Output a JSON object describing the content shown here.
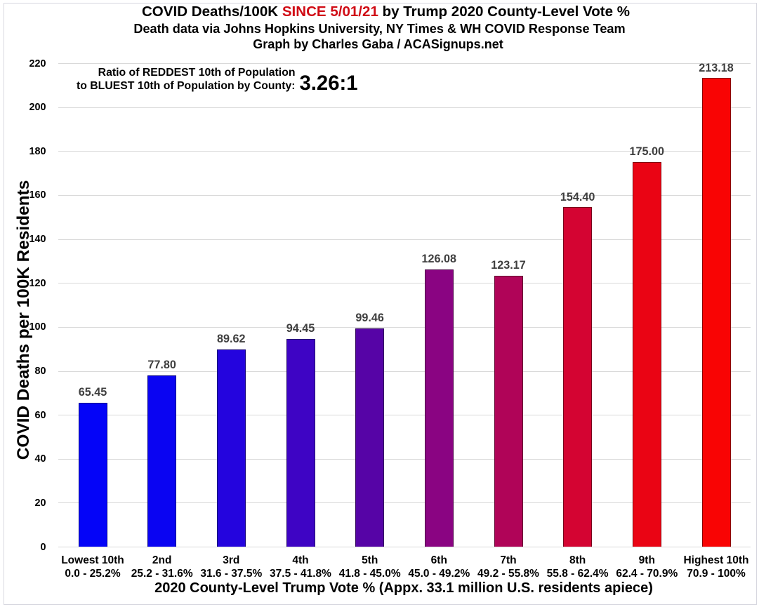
{
  "title": {
    "line1_prefix": "COVID Deaths/100K ",
    "line1_highlight": "SINCE 5/01/21",
    "line1_suffix": " by Trump 2020 County-Level Vote %",
    "line2": "Death data via Johns Hopkins University, NY Times & WH COVID Response Team",
    "line3": "Graph by Charles Gaba / ACASignups.net",
    "highlight_color": "#d00b15"
  },
  "annotation": {
    "line1": "Ratio of REDDEST 10th of Population",
    "line2": "to BLUEST 10th of Population by County:",
    "value": "3.26:1"
  },
  "chart_data": {
    "type": "bar",
    "title": "COVID Deaths/100K SINCE 5/01/21 by Trump 2020 County-Level Vote %",
    "subtitle1": "Death data via Johns Hopkins University, NY Times & WH COVID Response Team",
    "subtitle2": "Graph by Charles Gaba / ACASignups.net",
    "xlabel": "2020 County-Level Trump Vote % (Appx. 33.1 million U.S. residents apiece)",
    "ylabel": "COVID Deaths per 100K Residents",
    "ylim": [
      0,
      220
    ],
    "ytick_step": 20,
    "grid": true,
    "legend": false,
    "categories": [
      "Lowest 10th",
      "2nd",
      "3rd",
      "4th",
      "5th",
      "6th",
      "7th",
      "8th",
      "9th",
      "Highest 10th"
    ],
    "category_ranges": [
      "0.0 - 25.2%",
      "25.2 - 31.6%",
      "31.6 - 37.5%",
      "37.5 - 41.8%",
      "41.8 - 45.0%",
      "45.0 - 49.2%",
      "49.2 - 55.8%",
      "55.8 - 62.4%",
      "62.4 - 70.9%",
      "70.9 - 100%"
    ],
    "values": [
      65.45,
      77.8,
      89.62,
      94.45,
      99.46,
      126.08,
      123.17,
      154.4,
      175.0,
      213.18
    ],
    "value_labels": [
      "65.45",
      "77.80",
      "89.62",
      "94.45",
      "99.46",
      "126.08",
      "123.17",
      "154.40",
      "175.00",
      "213.18"
    ],
    "bar_colors": [
      "#0404f8",
      "#0a04f2",
      "#2404de",
      "#3e04c4",
      "#5604a6",
      "#8a0482",
      "#b00458",
      "#d40432",
      "#ea0414",
      "#f90404"
    ],
    "gridline_color": "#d9d9d9",
    "data_label_color": "#3f3f3f"
  }
}
